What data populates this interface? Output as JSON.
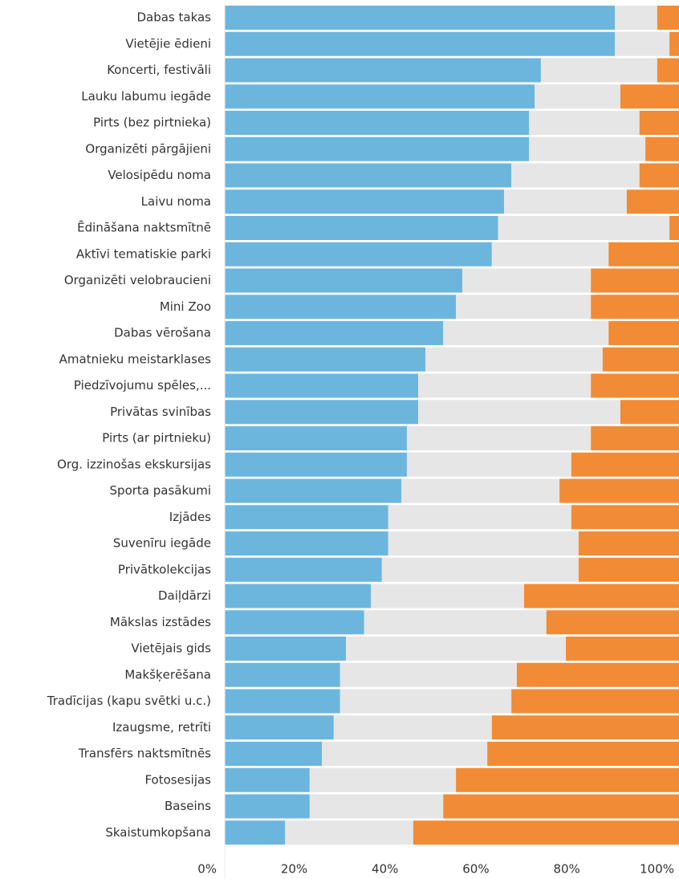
{
  "chart_data": {
    "type": "bar",
    "orientation": "horizontal",
    "stacked": true,
    "categories": [
      "Dabas takas",
      "Vietējie ēdieni",
      "Koncerti, festivāli",
      "Lauku labumu iegāde",
      "Pirts (bez pirtnieka)",
      "Organizēti pārgājieni",
      "Velosipēdu noma",
      "Laivu noma",
      "Ēdināšana naktsmītnē",
      "Aktīvi tematiskie parki",
      "Organizēti velobraucieni",
      "Mini Zoo",
      "Dabas vērošana",
      "Amatnieku meistarklases",
      "Piedzīvojumu spēles,...",
      "Privātas svinības",
      "Pirts (ar pirtnieku)",
      "Org. izzinošas ekskursijas",
      "Sporta pasākumi",
      "Izjādes",
      "Suvenīru iegāde",
      "Privātkolekcijas",
      "Daiļdārzi",
      "Mākslas izstādes",
      "Vietējais gids",
      "Makšķerēšana",
      "Tradīcijas (kapu svētki u.c.)",
      "Izaugsme, retrīti",
      "Transfērs naktsmītnēs",
      "Fotosesijas",
      "Baseins",
      "Skaistumkopšana"
    ],
    "series": [
      {
        "color": "#6cb6dd",
        "values": [
          85.9,
          85.9,
          69.6,
          68.2,
          67.0,
          67.0,
          63.1,
          61.5,
          60.2,
          58.8,
          52.3,
          50.9,
          48.1,
          44.2,
          42.6,
          42.6,
          40.1,
          40.1,
          38.9,
          36.0,
          36.0,
          34.6,
          32.2,
          30.7,
          26.7,
          25.4,
          25.4,
          24.0,
          21.4,
          18.7,
          18.7,
          13.3
        ]
      },
      {
        "color": "#e6e6e6",
        "values": [
          9.3,
          12.0,
          25.6,
          18.9,
          24.3,
          25.6,
          28.2,
          27.0,
          37.7,
          25.7,
          28.3,
          29.7,
          36.4,
          39.0,
          38.0,
          44.5,
          40.5,
          36.2,
          34.8,
          40.3,
          41.9,
          43.3,
          33.7,
          40.1,
          48.4,
          38.9,
          37.7,
          34.8,
          36.4,
          32.2,
          29.4,
          28.2
        ]
      },
      {
        "color": "#f28b35",
        "values": [
          4.8,
          2.1,
          4.8,
          12.9,
          8.7,
          7.4,
          8.7,
          11.5,
          2.1,
          15.5,
          19.4,
          19.4,
          15.5,
          16.8,
          19.4,
          12.9,
          19.4,
          23.7,
          26.3,
          23.7,
          22.1,
          22.1,
          34.1,
          29.2,
          24.9,
          35.7,
          36.9,
          41.2,
          42.2,
          49.1,
          51.9,
          58.5
        ]
      }
    ],
    "xlim": [
      0,
      100
    ],
    "xticks": [
      {
        "value": 0,
        "label": "0%"
      },
      {
        "value": 20,
        "label": "20%"
      },
      {
        "value": 40,
        "label": "40%"
      },
      {
        "value": 60,
        "label": "60%"
      },
      {
        "value": 80,
        "label": "80%"
      },
      {
        "value": 100,
        "label": "100%"
      }
    ]
  }
}
